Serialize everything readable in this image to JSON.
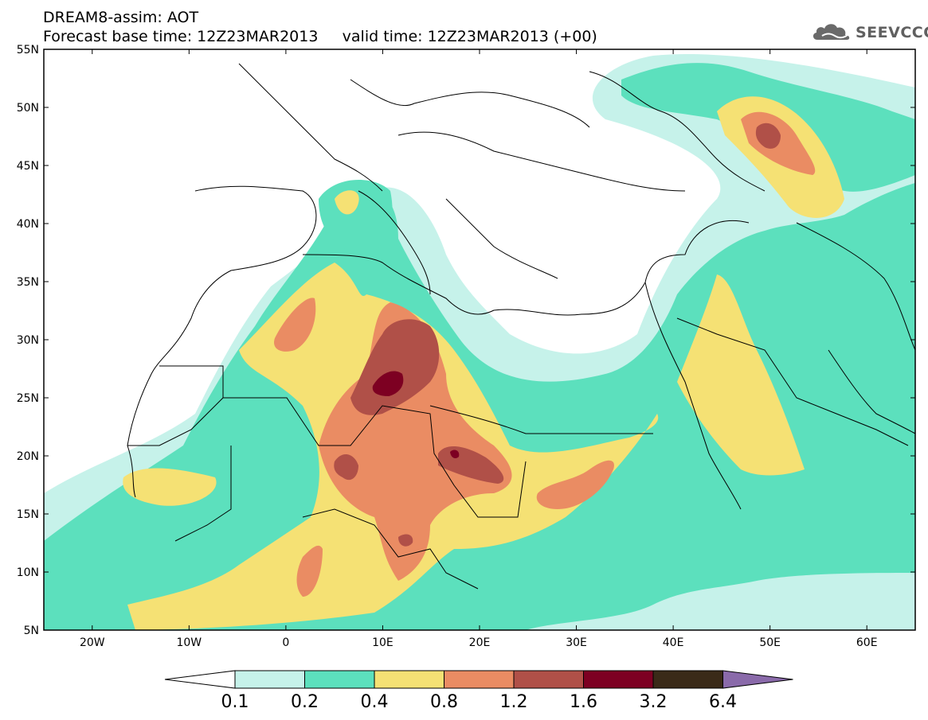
{
  "header": {
    "title": "DREAM8-assim: AOT",
    "base_time_label": "Forecast base time: 12Z23MAR2013",
    "valid_time_label": "valid time: 12Z23MAR2013 (+00)"
  },
  "logo": {
    "text": "SEEVCCC",
    "icon": "cloud-icon"
  },
  "map": {
    "lat_labels": [
      "55N",
      "50N",
      "45N",
      "40N",
      "35N",
      "30N",
      "25N",
      "20N",
      "15N",
      "10N",
      "5N"
    ],
    "lon_labels": [
      "20W",
      "10W",
      "0",
      "10E",
      "20E",
      "30E",
      "40E",
      "50E",
      "60E"
    ],
    "lat_range": [
      5,
      55
    ],
    "lon_range": [
      -25,
      65
    ]
  },
  "colorbar": {
    "tick_labels": [
      "0.1",
      "0.2",
      "0.4",
      "0.8",
      "1.2",
      "1.6",
      "3.2",
      "6.4"
    ],
    "colors": [
      "#ffffff",
      "#c6f2ea",
      "#5ce0bd",
      "#f5e174",
      "#ea8c63",
      "#b05048",
      "#7d0022",
      "#3a2a18",
      "#8a6aaa"
    ]
  }
}
